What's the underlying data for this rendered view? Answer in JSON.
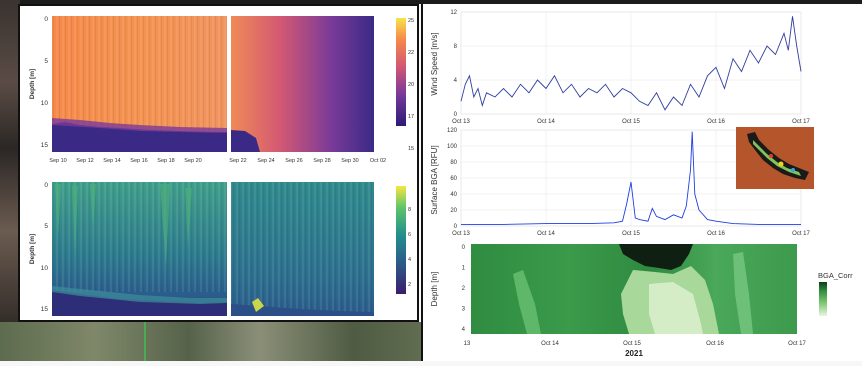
{
  "chart_data": [
    {
      "type": "heatmap",
      "ylabel": "Depth [m]",
      "y_ticks": [
        "0",
        "5",
        "10",
        "15"
      ],
      "x_ticks": [
        "Sep 10",
        "Sep 12",
        "Sep 14",
        "Sep 16",
        "Sep 18",
        "Sep 20",
        "Sep 22",
        "Sep 24",
        "Sep 26",
        "Sep 28",
        "Sep 30",
        "Oct 02"
      ],
      "colorbar_ticks": [
        "25",
        "22",
        "20",
        "17",
        "15"
      ],
      "colorscale": [
        "#2d1b78",
        "#7a3a98",
        "#d25873",
        "#f5894a",
        "#f7e34a"
      ]
    },
    {
      "type": "heatmap",
      "ylabel": "Depth [m]",
      "y_ticks": [
        "0",
        "5",
        "10",
        "15"
      ],
      "colorbar_ticks": [
        "8",
        "6",
        "4",
        "2"
      ],
      "colorscale": [
        "#3b1e6d",
        "#2c5d8a",
        "#22908c",
        "#5ec46a",
        "#f5e642"
      ]
    },
    {
      "type": "line",
      "ylabel": "Wind Speed [m/s]",
      "x_ticks": [
        "Oct 13",
        "Oct 14",
        "Oct 15",
        "Oct 16",
        "Oct 17"
      ],
      "y_ticks": [
        "0",
        "4",
        "8",
        "12"
      ],
      "ylim": [
        0,
        12
      ],
      "x": [
        13.0,
        13.05,
        13.1,
        13.15,
        13.2,
        13.25,
        13.3,
        13.4,
        13.5,
        13.6,
        13.7,
        13.8,
        13.9,
        14.0,
        14.1,
        14.2,
        14.3,
        14.4,
        14.5,
        14.6,
        14.7,
        14.8,
        14.9,
        15.0,
        15.1,
        15.2,
        15.3,
        15.4,
        15.5,
        15.6,
        15.7,
        15.8,
        15.9,
        16.0,
        16.1,
        16.2,
        16.3,
        16.4,
        16.5,
        16.6,
        16.7,
        16.8,
        16.85,
        16.9,
        16.95,
        17.0
      ],
      "values": [
        1.5,
        3.5,
        4.5,
        2.0,
        3.0,
        1.0,
        2.5,
        2.0,
        3.0,
        2.0,
        3.5,
        2.5,
        4.0,
        3.0,
        4.5,
        2.5,
        3.5,
        2.0,
        3.0,
        2.5,
        3.5,
        2.0,
        3.0,
        2.5,
        1.5,
        1.0,
        2.5,
        0.5,
        2.0,
        1.0,
        3.5,
        2.0,
        4.5,
        5.5,
        3.0,
        6.5,
        5.0,
        7.5,
        6.0,
        8.0,
        7.0,
        9.5,
        7.5,
        11.5,
        8.0,
        5.0
      ]
    },
    {
      "type": "line",
      "ylabel": "Surface BGA [RFU]",
      "x_ticks": [
        "Oct 13",
        "Oct 14",
        "Oct 15",
        "Oct 16",
        "Oct 17"
      ],
      "y_ticks": [
        "0",
        "20",
        "40",
        "60",
        "80",
        "100",
        "120"
      ],
      "ylim": [
        0,
        120
      ],
      "x": [
        13.0,
        13.5,
        14.0,
        14.5,
        14.8,
        14.9,
        14.95,
        15.0,
        15.05,
        15.1,
        15.2,
        15.25,
        15.3,
        15.4,
        15.5,
        15.6,
        15.65,
        15.7,
        15.72,
        15.75,
        15.8,
        15.9,
        16.0,
        16.2,
        16.5,
        17.0
      ],
      "values": [
        2,
        2,
        3,
        3,
        4,
        6,
        28,
        55,
        10,
        8,
        6,
        22,
        12,
        8,
        14,
        10,
        25,
        70,
        118,
        40,
        20,
        8,
        6,
        3,
        2,
        2
      ]
    },
    {
      "type": "heatmap",
      "ylabel": "Depth [m]",
      "y_ticks": [
        "0",
        "1",
        "2",
        "3",
        "4"
      ],
      "x_ticks": [
        "13",
        "Oct 14",
        "Oct 15",
        "Oct 16",
        "Oct 17"
      ],
      "xlabel": "2021",
      "legend_title": "BGA_Corr",
      "colorscale": [
        "#0b3d17",
        "#2e8b3e",
        "#7cc46e",
        "#e8f5e0"
      ]
    }
  ],
  "inset_map": {
    "background": "#b5552c"
  }
}
